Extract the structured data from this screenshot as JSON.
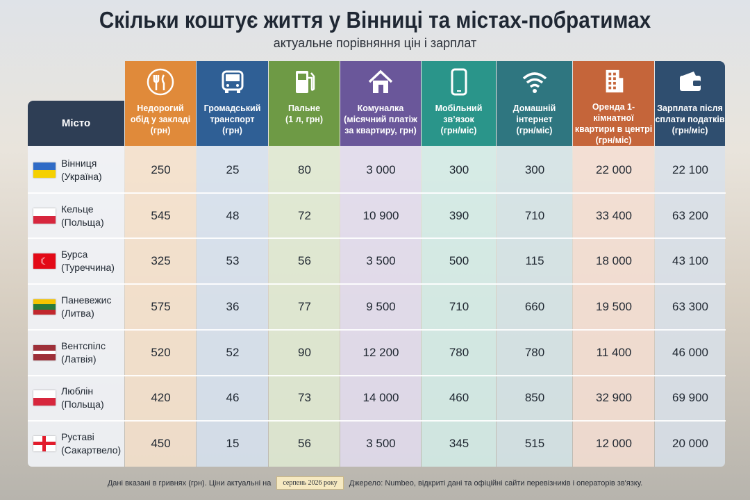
{
  "header": {
    "title": "Скільки коштує життя у Вінниці та містах-побратимах",
    "subtitle": "актуальне порівняння цін і зарплат"
  },
  "table": {
    "columns": [
      [
        "Місто"
      ],
      [
        "Недорогий",
        "обід у закладі",
        "(грн)"
      ],
      [
        "Громадський",
        "транспорт",
        "(грн)"
      ],
      [
        "Пальне",
        "(1 л, грн)"
      ],
      [
        "Комуналка",
        "(місячний платіж",
        "за квартиру, грн)"
      ],
      [
        "Мобільний",
        "зв’язок",
        "(грн/міс)"
      ],
      [
        "Домашній",
        "інтернет",
        "(грн/міс)"
      ],
      [
        "Оренда 1-кімнатної",
        "квартири в центрі",
        "(грн/міс)"
      ],
      [
        "Зарплата після",
        "сплати податків",
        "(грн/міс)"
      ]
    ],
    "rows": [
      {
        "city": "Вінниця",
        "country": "(Україна)",
        "cells": [
          "250",
          "25",
          "80",
          "3 000",
          "300",
          "300",
          "22 000",
          "22 100"
        ]
      },
      {
        "city": "Кельце",
        "country": "(Польща)",
        "cells": [
          "545",
          "48",
          "72",
          "10 900",
          "390",
          "710",
          "33 400",
          "63 200"
        ]
      },
      {
        "city": "Бурса",
        "country": "(Туреччина)",
        "cells": [
          "325",
          "53",
          "56",
          "3 500",
          "500",
          "115",
          "18 000",
          "43 100"
        ]
      },
      {
        "city": "Паневежис",
        "country": "(Литва)",
        "cells": [
          "575",
          "36",
          "77",
          "9 500",
          "710",
          "660",
          "19 500",
          "63 300"
        ]
      },
      {
        "city": "Вентспілс",
        "country": "(Латвія)",
        "cells": [
          "520",
          "52",
          "90",
          "12 200",
          "780",
          "780",
          "11 400",
          "46 000"
        ]
      },
      {
        "city": "Люблін",
        "country": "(Польща)",
        "cells": [
          "420",
          "46",
          "73",
          "14 000",
          "460",
          "850",
          "32 900",
          "69 900"
        ]
      },
      {
        "city": "Руставі",
        "country": "(Сакартвело)",
        "cells": [
          "450",
          "15",
          "56",
          "3 500",
          "345",
          "515",
          "12 000",
          "20 000"
        ]
      }
    ]
  },
  "footer": {
    "note": "Дані вказані в гривнях (грн). Ціни актуальні на",
    "date": "серпень 2026 року",
    "source": "Джерело: Numbeo, відкриті дані та офіційні сайти перевізників і операторів зв'язку."
  }
}
